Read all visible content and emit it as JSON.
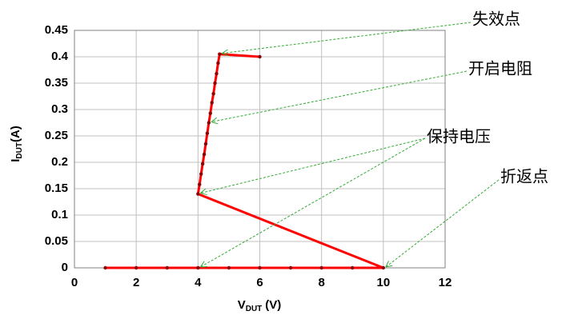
{
  "chart_data": {
    "type": "line",
    "x_label": {
      "main": "V",
      "sub": "DUT",
      "unit": "(V)"
    },
    "y_label": {
      "main": "I",
      "sub": "DUT",
      "unit": "(A)"
    },
    "series": [
      {
        "color": "#ff0000",
        "marker_color": "#8b0000",
        "x": [
          1,
          2,
          3,
          4,
          5,
          6,
          7,
          8,
          9,
          10,
          4,
          4.05,
          4.1,
          4.15,
          4.2,
          4.25,
          4.3,
          4.35,
          4.4,
          4.45,
          4.5,
          4.55,
          4.6,
          4.65,
          4.7,
          6
        ],
        "values": [
          0,
          0,
          0,
          0,
          0,
          0,
          0,
          0,
          0,
          0,
          0.14,
          0.158,
          0.178,
          0.197,
          0.215,
          0.235,
          0.255,
          0.275,
          0.293,
          0.313,
          0.33,
          0.35,
          0.368,
          0.388,
          0.405,
          0.4
        ]
      }
    ],
    "xlim": [
      0,
      12
    ],
    "xticks": [
      0,
      2,
      4,
      6,
      8,
      10,
      12
    ],
    "ylim": [
      0,
      0.45
    ],
    "yticks": [
      0,
      0.05,
      0.1,
      0.15,
      0.2,
      0.25,
      0.3,
      0.35,
      0.4,
      0.45
    ],
    "grid": true,
    "annotation_color": "#33aa33",
    "annotations": [
      "失效点",
      "开启电阻",
      "保持电压",
      "折返点"
    ]
  }
}
